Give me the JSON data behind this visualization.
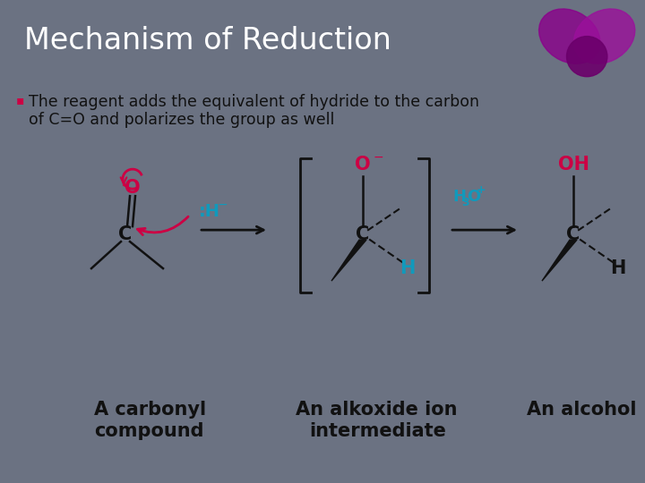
{
  "title": "Mechanism of Reduction",
  "title_color": "#ffffff",
  "title_bg": "#6b7282",
  "body_bg": "#e0e0e4",
  "bullet_text_line1": "The reagent adds the equivalent of hydride to the carbon",
  "bullet_text_line2": "of C=O and polarizes the group as well",
  "bullet_color": "#cc0044",
  "text_color": "#111111",
  "pink": "#cc0044",
  "cyan": "#1199bb",
  "black": "#111111",
  "label1_line1": "A carbonyl",
  "label1_line2": "compound",
  "label2_line1": "An alkoxide ion",
  "label2_line2": "intermediate",
  "label3": "An alcohol",
  "figsize": [
    7.2,
    5.4
  ],
  "dpi": 100
}
